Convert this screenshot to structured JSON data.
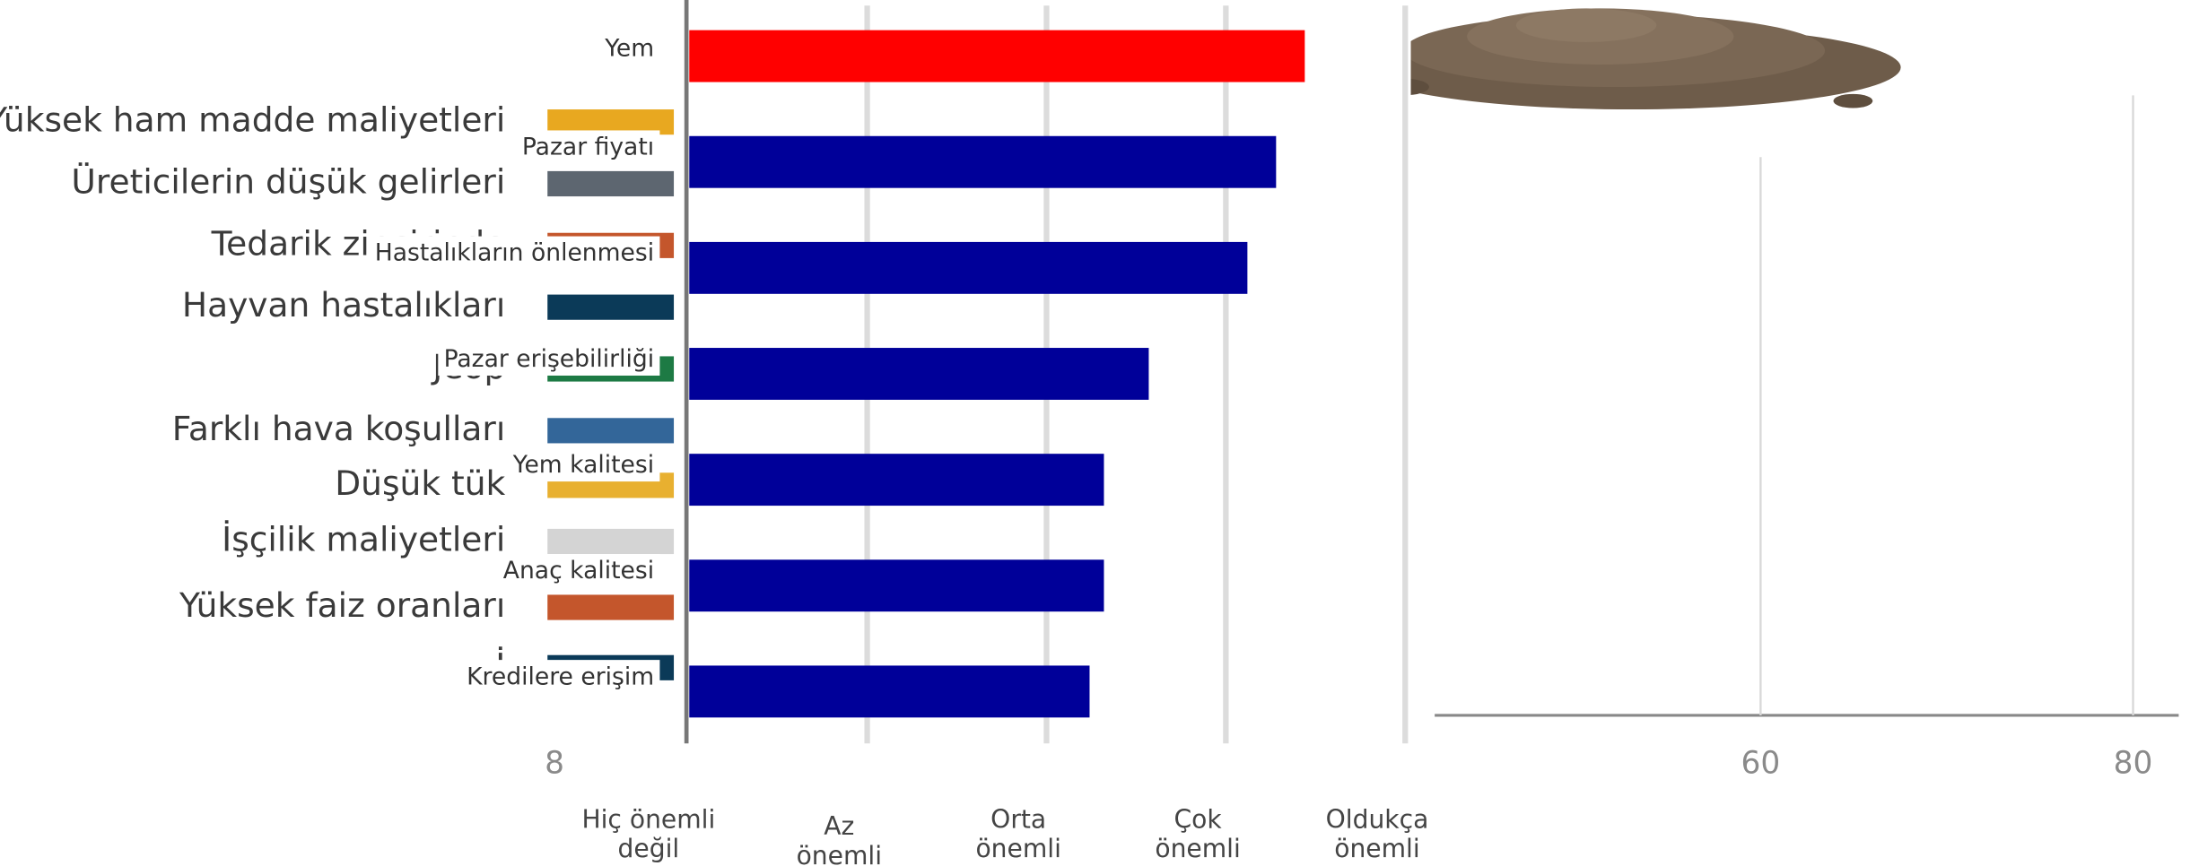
{
  "chart_data": [
    {
      "type": "bar",
      "orientation": "horizontal",
      "categories": [
        "Yem",
        "Pazar fiyatı",
        "Hastalıkların önlenmesi",
        "Pazar erişebilirliği",
        "Yem kalitesi",
        "Anaç kalitesi",
        "Kredilere erişim"
      ],
      "values": [
        4.44,
        4.28,
        4.12,
        3.57,
        3.32,
        3.32,
        3.24
      ],
      "colors": [
        "#ff0000",
        "#000099",
        "#000099",
        "#000099",
        "#000099",
        "#000099",
        "#000099"
      ],
      "xlim": [
        1,
        5
      ],
      "xticks": [
        {
          "value": 1,
          "label": "Hiç önemli değil"
        },
        {
          "value": 2,
          "label": "Az önemli"
        },
        {
          "value": 3,
          "label": "Orta önemli"
        },
        {
          "value": 4,
          "label": "Çok önemli"
        },
        {
          "value": 5,
          "label": "Oldukça önemli"
        }
      ],
      "grid": true
    },
    {
      "type": "bar",
      "orientation": "horizontal",
      "categories": [
        "Yüksek ham madde maliyetleri",
        "Üreticilerin düşük gelirleri",
        "Tedarik zincirinde",
        "Hayvan hastalıkları",
        "Jeop",
        "Farklı hava koşulları",
        "Düşük tük",
        "İşçilik maliyetleri",
        "Yüksek faiz oranları",
        "İ"
      ],
      "colors": [
        "#e8a820",
        "#5d6670",
        "#c4562c",
        "#0b3a58",
        "#1d7a44",
        "#336699",
        "#e8b030",
        "#d4d4d4",
        "#c4562c",
        "#0b3a58"
      ],
      "x_label_fragment": "8",
      "xlim": [
        42.5,
        82.3
      ],
      "xticks": [
        60,
        80
      ]
    }
  ]
}
